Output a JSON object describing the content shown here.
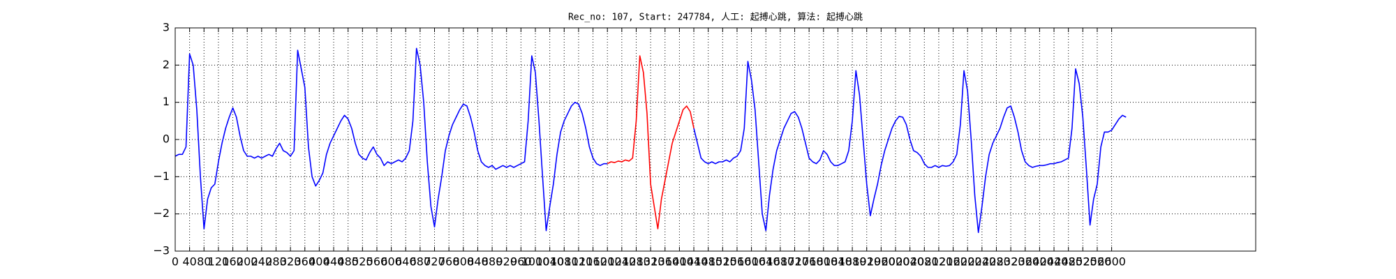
{
  "chart_data": {
    "type": "line",
    "title": "Rec_no: 107, Start: 247784, 人工: 起搏心跳, 算法: 起搏心跳",
    "xlim": [
      0,
      3000
    ],
    "ylim": [
      -3,
      3
    ],
    "grid": true,
    "xticks": [
      0,
      40,
      80,
      120,
      160,
      200,
      240,
      280,
      320,
      360,
      400,
      440,
      480,
      520,
      560,
      600,
      640,
      680,
      720,
      760,
      800,
      840,
      880,
      920,
      960,
      1000,
      1040,
      1080,
      1120,
      1160,
      1200,
      1240,
      1280,
      1320,
      1360,
      1400,
      1440,
      1480,
      1520,
      1560,
      1600,
      1640,
      1680,
      1720,
      1760,
      1800,
      1840,
      1880,
      1920,
      1960,
      2000,
      2040,
      2080,
      2120,
      2160,
      2200,
      2240,
      2280,
      2320,
      2360,
      2400,
      2440,
      2480,
      2520,
      2560,
      2600
    ],
    "yticks": [
      {
        "value": -3,
        "label": "−3"
      },
      {
        "value": -2,
        "label": "−2"
      },
      {
        "value": -1,
        "label": "−1"
      },
      0,
      1,
      2,
      3
    ],
    "series": [
      {
        "color": "#0000ff",
        "x": [
          0,
          10,
          20,
          30,
          40,
          50,
          60,
          70,
          80,
          90,
          100,
          110,
          120,
          130,
          140,
          150,
          160,
          170,
          180,
          190,
          200,
          210,
          220,
          230,
          240,
          250,
          260,
          270,
          280,
          290,
          300,
          310,
          320,
          330,
          340,
          350,
          360,
          370,
          380,
          390,
          400,
          410,
          420,
          430,
          440,
          450,
          460,
          470,
          480,
          490,
          500,
          510,
          520,
          530,
          540,
          550,
          560,
          570,
          580,
          590,
          600,
          610,
          620,
          630,
          640,
          650,
          660,
          670,
          680,
          690,
          700,
          710,
          720,
          730,
          740,
          750,
          760,
          770,
          780,
          790,
          800,
          810,
          820,
          830,
          840,
          850,
          860,
          870,
          880,
          890,
          900,
          910,
          920,
          930,
          940,
          950,
          960,
          970,
          980,
          990,
          1000,
          1010,
          1020,
          1030,
          1040,
          1050,
          1060,
          1070,
          1080,
          1090,
          1100,
          1110,
          1120,
          1130,
          1140,
          1150,
          1160,
          1170,
          1180,
          1190,
          1200,
          1210,
          1220,
          1230,
          1240,
          1250,
          1260,
          1270,
          1280,
          1290,
          1300,
          1310,
          1320,
          1330,
          1340,
          1350,
          1360,
          1370,
          1380,
          1390,
          1400,
          1410,
          1420,
          1430,
          1440,
          1450,
          1460,
          1470,
          1480,
          1490,
          1500,
          1510,
          1520,
          1530,
          1540,
          1550,
          1560,
          1570,
          1580,
          1590,
          1600,
          1610,
          1620,
          1630,
          1640,
          1650,
          1660,
          1670,
          1680,
          1690,
          1700,
          1710,
          1720,
          1730,
          1740,
          1750,
          1760,
          1770,
          1780,
          1790,
          1800,
          1810,
          1820,
          1830,
          1840,
          1850,
          1860,
          1870,
          1880,
          1890,
          1900,
          1910,
          1920,
          1930,
          1940,
          1950,
          1960,
          1970,
          1980,
          1990,
          2000,
          2010,
          2020,
          2030,
          2040,
          2050,
          2060,
          2070,
          2080,
          2090,
          2100,
          2110,
          2120,
          2130,
          2140,
          2150,
          2160,
          2170,
          2180,
          2190,
          2200,
          2210,
          2220,
          2230,
          2240,
          2250,
          2260,
          2270,
          2280,
          2290,
          2300,
          2310,
          2320,
          2330,
          2340,
          2350,
          2360,
          2370,
          2380,
          2390,
          2400,
          2410,
          2420,
          2430,
          2440,
          2450,
          2460,
          2470,
          2480,
          2490,
          2500,
          2510,
          2520,
          2530,
          2540,
          2550,
          2560,
          2570,
          2580,
          2590,
          2600,
          2610,
          2620,
          2630,
          2640
        ],
        "values": [
          -0.45,
          -0.4,
          -0.4,
          -0.2,
          2.3,
          2.0,
          0.8,
          -1.0,
          -2.4,
          -1.6,
          -1.3,
          -1.2,
          -0.6,
          -0.1,
          0.3,
          0.6,
          0.85,
          0.6,
          0.1,
          -0.3,
          -0.45,
          -0.45,
          -0.5,
          -0.45,
          -0.5,
          -0.45,
          -0.4,
          -0.45,
          -0.25,
          -0.1,
          -0.3,
          -0.35,
          -0.45,
          -0.3,
          2.4,
          1.9,
          1.4,
          -0.2,
          -1.0,
          -1.25,
          -1.1,
          -0.9,
          -0.4,
          -0.1,
          0.1,
          0.3,
          0.5,
          0.65,
          0.55,
          0.3,
          -0.1,
          -0.4,
          -0.5,
          -0.55,
          -0.35,
          -0.2,
          -0.4,
          -0.5,
          -0.7,
          -0.6,
          -0.65,
          -0.6,
          -0.55,
          -0.6,
          -0.5,
          -0.3,
          0.5,
          2.45,
          2.0,
          1.0,
          -0.6,
          -1.8,
          -2.35,
          -1.6,
          -1.0,
          -0.3,
          0.1,
          0.4,
          0.6,
          0.8,
          0.95,
          0.9,
          0.6,
          0.2,
          -0.3,
          -0.6,
          -0.7,
          -0.75,
          -0.7,
          -0.8,
          -0.75,
          -0.7,
          -0.75,
          -0.7,
          -0.75,
          -0.7,
          -0.65,
          -0.6,
          0.5,
          2.25,
          1.8,
          0.5,
          -1.0,
          -2.45,
          -1.8,
          -1.2,
          -0.4,
          0.2,
          0.5,
          0.7,
          0.9,
          1.0,
          0.95,
          0.7,
          0.3,
          -0.2,
          -0.5,
          -0.65,
          -0.7,
          -0.65,
          -0.65,
          null,
          null,
          null,
          null,
          null,
          null,
          null,
          null,
          null,
          null,
          null,
          null,
          null,
          null,
          null,
          null,
          null,
          null,
          null,
          null,
          null,
          null,
          null,
          0.3,
          -0.1,
          -0.5,
          -0.6,
          -0.65,
          -0.6,
          -0.65,
          -0.6,
          -0.6,
          -0.55,
          -0.6,
          -0.5,
          -0.45,
          -0.3,
          0.3,
          2.1,
          1.6,
          0.8,
          -0.6,
          -2.0,
          -2.45,
          -1.5,
          -0.8,
          -0.3,
          0,
          0.3,
          0.5,
          0.7,
          0.75,
          0.6,
          0.3,
          -0.1,
          -0.5,
          -0.6,
          -0.65,
          -0.55,
          -0.3,
          -0.4,
          -0.6,
          -0.7,
          -0.7,
          -0.65,
          -0.6,
          -0.3,
          0.5,
          1.85,
          1.2,
          0,
          -1.2,
          -2.05,
          -1.6,
          -1.2,
          -0.7,
          -0.3,
          0,
          0.3,
          0.5,
          0.62,
          0.6,
          0.4,
          0,
          -0.3,
          -0.35,
          -0.45,
          -0.65,
          -0.75,
          -0.75,
          -0.7,
          -0.75,
          -0.7,
          -0.72,
          -0.7,
          -0.6,
          -0.4,
          0.4,
          1.85,
          1.3,
          0,
          -1.5,
          -2.5,
          -1.8,
          -1.0,
          -0.4,
          -0.1,
          0.1,
          0.3,
          0.6,
          0.85,
          0.9,
          0.6,
          0.2,
          -0.3,
          -0.6,
          -0.7,
          -0.75,
          -0.72,
          -0.7,
          -0.7,
          -0.68,
          -0.65,
          -0.65,
          -0.62,
          -0.6,
          -0.55,
          -0.5,
          0.3,
          1.9,
          1.5,
          0.6,
          -0.8,
          -2.3,
          -1.6,
          -1.2,
          -0.2,
          0.2,
          0.2,
          0.25,
          0.4,
          0.55,
          0.65,
          0.6
        ]
      },
      {
        "color": "#ff0000",
        "x": [
          1200,
          1210,
          1220,
          1230,
          1240,
          1250,
          1260,
          1270,
          1280,
          1290,
          1300,
          1310,
          1320,
          1330,
          1340,
          1350,
          1360,
          1370,
          1380,
          1390,
          1400,
          1410,
          1420,
          1430,
          1440
        ],
        "values": [
          -0.65,
          -0.6,
          -0.62,
          -0.58,
          -0.6,
          -0.55,
          -0.58,
          -0.5,
          0.5,
          2.25,
          1.8,
          0.7,
          -1.2,
          -1.8,
          -2.4,
          -1.6,
          -1.1,
          -0.6,
          -0.1,
          0.2,
          0.5,
          0.8,
          0.9,
          0.75,
          0.3
        ]
      }
    ]
  }
}
